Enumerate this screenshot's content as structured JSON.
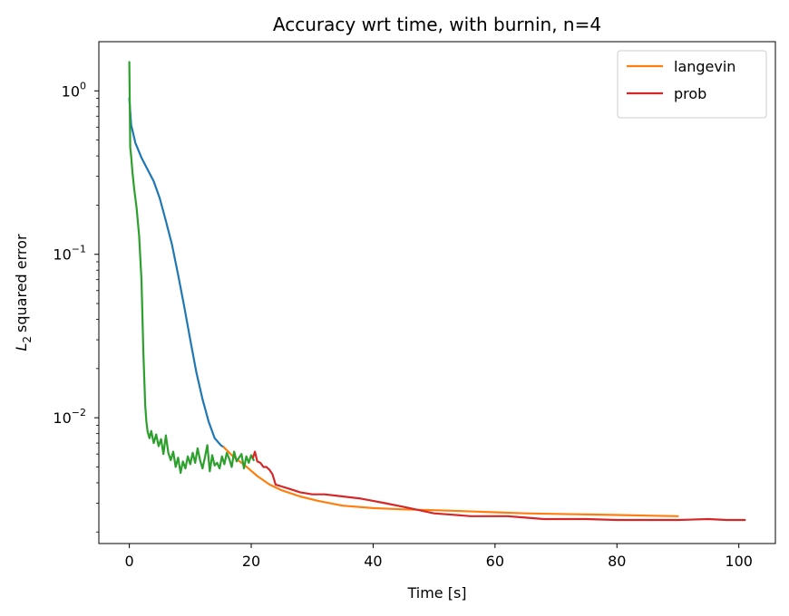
{
  "chart_data": {
    "type": "line",
    "title": "Accuracy wrt time, with burnin, n=4",
    "xlabel": "Time [s]",
    "ylabel": {
      "symbol": "L",
      "subscript": "2",
      "text": "squared error"
    },
    "xlim": [
      -5,
      106
    ],
    "ylim": [
      0.0017,
      2.0
    ],
    "yscale": "log",
    "x_ticks": [
      0,
      20,
      40,
      60,
      80,
      100
    ],
    "y_ticks": [
      {
        "value": 1,
        "base": "10",
        "exponent": "0"
      },
      {
        "value": 0.1,
        "base": "10",
        "exponent": "−1"
      },
      {
        "value": 0.01,
        "base": "10",
        "exponent": "−2"
      }
    ],
    "legend": {
      "position": "top-right"
    },
    "series": [
      {
        "color": "#1f77b4",
        "x": [
          0,
          0.3,
          1,
          2,
          3,
          4,
          5,
          6,
          7,
          8,
          9,
          10,
          11,
          12,
          13,
          14,
          15,
          15.5
        ],
        "y": [
          0.9,
          0.62,
          0.48,
          0.39,
          0.33,
          0.28,
          0.22,
          0.16,
          0.115,
          0.075,
          0.048,
          0.03,
          0.019,
          0.013,
          0.0095,
          0.0075,
          0.0068,
          0.0066
        ]
      },
      {
        "name": "langevin",
        "color": "#ff7f0e",
        "x": [
          15.5,
          17,
          19,
          21,
          23,
          25,
          28,
          31,
          35,
          40,
          45,
          50,
          55,
          60,
          65,
          70,
          75,
          80,
          85,
          90
        ],
        "y": [
          0.0066,
          0.0058,
          0.0051,
          0.0044,
          0.0039,
          0.0036,
          0.0033,
          0.0031,
          0.0029,
          0.0028,
          0.00275,
          0.00272,
          0.00268,
          0.00264,
          0.0026,
          0.00258,
          0.00256,
          0.00254,
          0.00252,
          0.0025
        ]
      },
      {
        "color": "#2ca02c",
        "x": [
          0,
          0.15,
          0.3,
          0.5,
          0.8,
          1.2,
          1.6,
          2.0,
          2.3,
          2.6,
          2.8,
          3.0,
          3.3,
          3.6,
          4.0,
          4.4,
          4.8,
          5.2,
          5.6,
          6.0,
          6.4,
          6.8,
          7.2,
          7.6,
          8.0,
          8.4,
          8.8,
          9.2,
          9.6,
          10.0,
          10.4,
          10.8,
          11.2,
          11.6,
          12.0,
          12.4,
          12.8,
          13.2,
          13.6,
          14.0,
          14.4,
          14.8,
          15.2,
          15.6,
          16.0,
          16.4,
          16.8,
          17.2,
          17.6,
          18.0,
          18.4,
          18.8,
          19.2,
          19.6,
          20.0,
          20.4
        ],
        "y": [
          1.5,
          0.45,
          0.4,
          0.32,
          0.25,
          0.19,
          0.13,
          0.07,
          0.025,
          0.012,
          0.0095,
          0.0082,
          0.0075,
          0.0083,
          0.007,
          0.0079,
          0.0067,
          0.0074,
          0.006,
          0.0078,
          0.0061,
          0.0055,
          0.0062,
          0.005,
          0.0057,
          0.0046,
          0.0054,
          0.0049,
          0.0058,
          0.0052,
          0.0061,
          0.0053,
          0.0065,
          0.0055,
          0.0049,
          0.0057,
          0.0068,
          0.0047,
          0.0059,
          0.0051,
          0.0053,
          0.0049,
          0.0058,
          0.0052,
          0.0061,
          0.0056,
          0.005,
          0.0062,
          0.0054,
          0.0057,
          0.006,
          0.0049,
          0.0058,
          0.0053,
          0.0059,
          0.0055
        ]
      },
      {
        "name": "prob",
        "color": "#d62728",
        "x": [
          20.3,
          20.6,
          21,
          21.5,
          22,
          22.5,
          23,
          23.5,
          24,
          25,
          26,
          27,
          28,
          30,
          32,
          35,
          38,
          40,
          42,
          44,
          46,
          48,
          50,
          53,
          56,
          60,
          62,
          65,
          68,
          70,
          75,
          80,
          85,
          90,
          95,
          98,
          101
        ],
        "y": [
          0.0057,
          0.0062,
          0.0054,
          0.0053,
          0.005,
          0.005,
          0.0048,
          0.0045,
          0.0039,
          0.0038,
          0.0037,
          0.0036,
          0.0035,
          0.0034,
          0.0034,
          0.0033,
          0.0032,
          0.0031,
          0.003,
          0.0029,
          0.0028,
          0.0027,
          0.0026,
          0.00255,
          0.0025,
          0.0025,
          0.0025,
          0.00245,
          0.0024,
          0.0024,
          0.0024,
          0.00237,
          0.00237,
          0.00237,
          0.0024,
          0.00237,
          0.00237
        ]
      }
    ]
  }
}
